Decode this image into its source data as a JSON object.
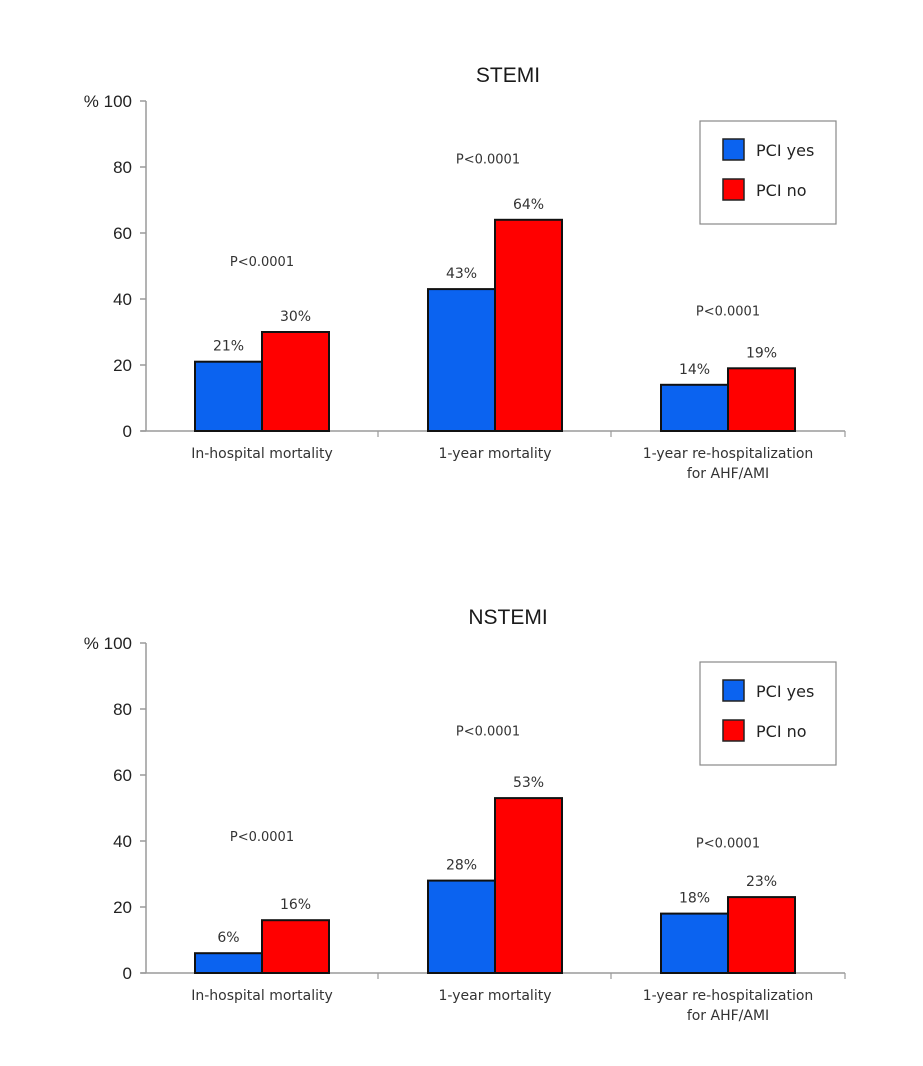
{
  "chart_data": [
    {
      "type": "bar",
      "title": "STEMI",
      "ylabel": "%",
      "xlabel": "",
      "ylim": [
        0,
        100
      ],
      "yticks": [
        0,
        20,
        40,
        60,
        80,
        100
      ],
      "grid": false,
      "legend_position": "top-right",
      "categories": [
        "In-hospital mortality",
        "1-year mortality",
        "1-year re-hospitalization\nfor AHF/AMI"
      ],
      "series": [
        {
          "name": "PCI yes",
          "color": "#0b63f0",
          "values": [
            21,
            43,
            14
          ],
          "labels": [
            "21%",
            "43%",
            "14%"
          ]
        },
        {
          "name": "PCI no",
          "color": "#ff0000",
          "values": [
            30,
            64,
            19
          ],
          "labels": [
            "30%",
            "64%",
            "19%"
          ]
        }
      ],
      "annotations": [
        "P<0.0001",
        "P<0.0001",
        "P<0.0001"
      ]
    },
    {
      "type": "bar",
      "title": "NSTEMI",
      "ylabel": "%",
      "xlabel": "",
      "ylim": [
        0,
        100
      ],
      "yticks": [
        0,
        20,
        40,
        60,
        80,
        100
      ],
      "grid": false,
      "legend_position": "top-right",
      "categories": [
        "In-hospital mortality",
        "1-year mortality",
        "1-year re-hospitalization\nfor AHF/AMI"
      ],
      "series": [
        {
          "name": "PCI yes",
          "color": "#0b63f0",
          "values": [
            6,
            28,
            18
          ],
          "labels": [
            "6%",
            "28%",
            "18%"
          ]
        },
        {
          "name": "PCI no",
          "color": "#ff0000",
          "values": [
            16,
            53,
            23
          ],
          "labels": [
            "16%",
            "53%",
            "23%"
          ]
        }
      ],
      "annotations": [
        "P<0.0001",
        "P<0.0001",
        "P<0.0001"
      ]
    }
  ]
}
